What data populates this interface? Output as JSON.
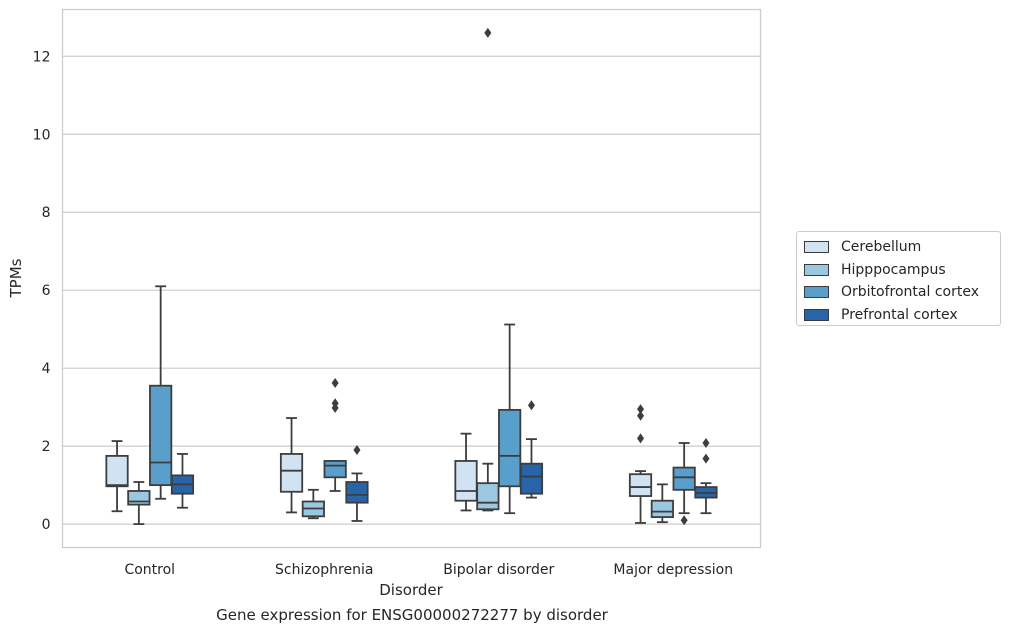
{
  "caption": "Gene expression for ENSG00000272277 by disorder",
  "chart_data": {
    "type": "boxplot",
    "xlabel": "Disorder",
    "ylabel": "TPMs",
    "ylim": [
      -0.6,
      13.2
    ],
    "yticks": [
      0,
      2,
      4,
      6,
      8,
      10,
      12
    ],
    "grid": "horizontal",
    "legend_position": "right",
    "categories": [
      "Control",
      "Schizophrenia",
      "Bipolar disorder",
      "Major depression"
    ],
    "series": [
      {
        "name": "Cerebellum",
        "color": "#d1e3f3",
        "boxes": [
          {
            "whislo": 0.33,
            "q1": 0.97,
            "med": 1.0,
            "q3": 1.75,
            "whishi": 2.13,
            "fliers": []
          },
          {
            "whislo": 0.3,
            "q1": 0.83,
            "med": 1.37,
            "q3": 1.8,
            "whishi": 2.72,
            "fliers": []
          },
          {
            "whislo": 0.35,
            "q1": 0.6,
            "med": 0.85,
            "q3": 1.62,
            "whishi": 2.32,
            "fliers": []
          },
          {
            "whislo": 0.03,
            "q1": 0.72,
            "med": 0.95,
            "q3": 1.28,
            "whishi": 1.36,
            "fliers": [
              2.2,
              2.78,
              2.95
            ]
          }
        ]
      },
      {
        "name": "Hipppocampus",
        "color": "#9ac8e0",
        "boxes": [
          {
            "whislo": 0.0,
            "q1": 0.5,
            "med": 0.58,
            "q3": 0.85,
            "whishi": 1.08,
            "fliers": []
          },
          {
            "whislo": 0.15,
            "q1": 0.2,
            "med": 0.4,
            "q3": 0.58,
            "whishi": 0.88,
            "fliers": []
          },
          {
            "whislo": 0.35,
            "q1": 0.38,
            "med": 0.55,
            "q3": 1.05,
            "whishi": 1.55,
            "fliers": [
              12.6
            ]
          },
          {
            "whislo": 0.05,
            "q1": 0.18,
            "med": 0.32,
            "q3": 0.6,
            "whishi": 1.02,
            "fliers": []
          }
        ]
      },
      {
        "name": "Orbitofrontal cortex",
        "color": "#5a9fcc",
        "boxes": [
          {
            "whislo": 0.65,
            "q1": 1.0,
            "med": 1.58,
            "q3": 3.55,
            "whishi": 6.1,
            "fliers": []
          },
          {
            "whislo": 0.85,
            "q1": 1.2,
            "med": 1.5,
            "q3": 1.62,
            "whishi": 1.62,
            "fliers": [
              2.98,
              3.1,
              3.62
            ]
          },
          {
            "whislo": 0.28,
            "q1": 0.97,
            "med": 1.75,
            "q3": 2.93,
            "whishi": 5.12,
            "fliers": []
          },
          {
            "whislo": 0.28,
            "q1": 0.88,
            "med": 1.2,
            "q3": 1.45,
            "whishi": 2.08,
            "fliers": [
              0.1
            ]
          }
        ]
      },
      {
        "name": "Prefrontal cortex",
        "color": "#2765a8",
        "boxes": [
          {
            "whislo": 0.42,
            "q1": 0.78,
            "med": 1.02,
            "q3": 1.25,
            "whishi": 1.8,
            "fliers": []
          },
          {
            "whislo": 0.08,
            "q1": 0.55,
            "med": 0.75,
            "q3": 1.08,
            "whishi": 1.3,
            "fliers": [
              1.9
            ]
          },
          {
            "whislo": 0.68,
            "q1": 0.78,
            "med": 1.22,
            "q3": 1.55,
            "whishi": 2.18,
            "fliers": [
              3.05
            ]
          },
          {
            "whislo": 0.28,
            "q1": 0.68,
            "med": 0.8,
            "q3": 0.95,
            "whishi": 1.05,
            "fliers": [
              1.68,
              2.08
            ]
          }
        ]
      }
    ]
  }
}
